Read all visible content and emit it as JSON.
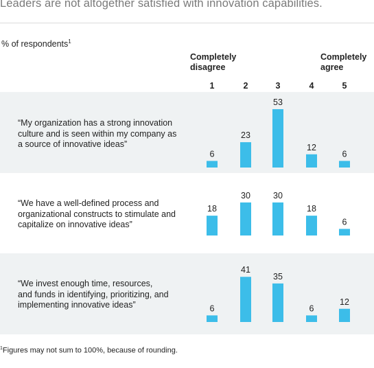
{
  "title": "Leaders are not altogether satisfied with innovation capabilities.",
  "subtitle": "% of respondents",
  "subtitle_sup": "1",
  "scale": {
    "left_label_line1": "Completely",
    "left_label_line2": "disagree",
    "right_label_line1": "Completely",
    "right_label_line2": "agree",
    "points": [
      "1",
      "2",
      "3",
      "4",
      "5"
    ]
  },
  "statements": [
    {
      "line1": "“My organization has a strong innovation",
      "line2": "culture and is seen within my company as",
      "line3": "a source of innovative ideas”"
    },
    {
      "line1": "“We have a well-defined process and",
      "line2": "organizational constructs to stimulate and",
      "line3": "capitalize on innovative ideas”"
    },
    {
      "line1": "“We invest enough time, resources,",
      "line2": "and funds in identifying, prioritizing, and",
      "line3": "implementing innovative ideas”"
    }
  ],
  "footnote": "Figures may not sum to 100%, because of rounding.",
  "footnote_sup": "1",
  "colors": {
    "bar": "#3cbde9",
    "band": "#eff2f3"
  },
  "chart_data": {
    "type": "bar",
    "categories": [
      "1",
      "2",
      "3",
      "4",
      "5"
    ],
    "series": [
      {
        "name": "“My organization has a strong innovation culture and is seen within my company as a source of innovative ideas”",
        "values": [
          6,
          23,
          53,
          12,
          6
        ]
      },
      {
        "name": "“We have a well-defined process and organizational constructs to stimulate and capitalize on innovative ideas”",
        "values": [
          18,
          30,
          30,
          18,
          6
        ]
      },
      {
        "name": "“We invest enough time, resources, and funds in identifying, prioritizing, and implementing innovative ideas”",
        "values": [
          6,
          41,
          35,
          6,
          12
        ]
      }
    ],
    "xlabel": "",
    "ylabel": "% of respondents",
    "ylim": [
      0,
      53
    ],
    "grid": false
  }
}
